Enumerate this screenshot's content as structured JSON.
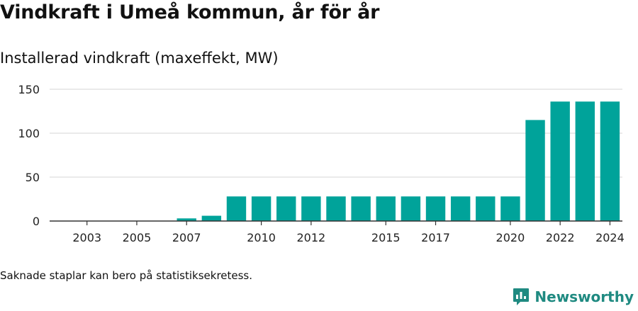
{
  "title": "Vindkraft i Umeå kommun, år för år",
  "subtitle": "Installerad vindkraft (maxeffekt, MW)",
  "footnote": "Saknade staplar kan bero på statistiksekretess.",
  "brand": {
    "name": "Newsworthy",
    "logo_icon": "newsworthy-logo-icon"
  },
  "colors": {
    "bar": "#00a39a",
    "grid": "#dddddd",
    "axis": "#333333",
    "brand": "#1f8a81"
  },
  "chart_data": {
    "type": "bar",
    "categories": [
      "2002",
      "2003",
      "2004",
      "2005",
      "2006",
      "2007",
      "2008",
      "2009",
      "2010",
      "2011",
      "2012",
      "2013",
      "2014",
      "2015",
      "2016",
      "2017",
      "2018",
      "2019",
      "2020",
      "2021",
      "2022",
      "2023",
      "2024"
    ],
    "values": [
      0,
      0,
      0,
      0,
      0,
      3,
      6,
      28,
      28,
      28,
      28,
      28,
      28,
      28,
      28,
      28,
      28,
      28,
      28,
      115,
      136,
      136,
      136
    ],
    "x_tick_labels": [
      "2003",
      "2005",
      "2007",
      "2010",
      "2012",
      "2015",
      "2017",
      "2020",
      "2022",
      "2024"
    ],
    "y_ticks": [
      0,
      50,
      100,
      150
    ],
    "ylim": [
      0,
      150
    ],
    "grid": true,
    "legend": "none",
    "xlabel": "",
    "ylabel": ""
  }
}
